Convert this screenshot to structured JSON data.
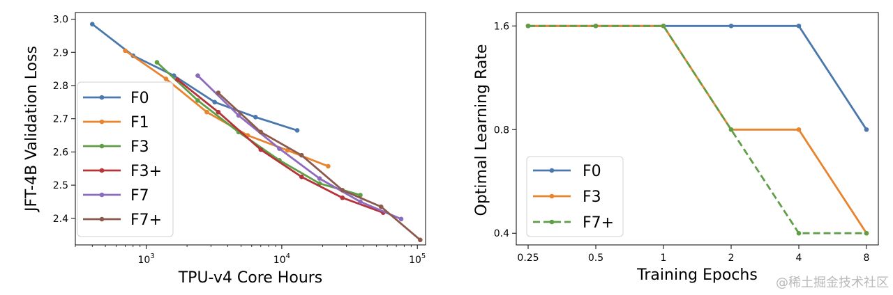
{
  "chart_data": [
    {
      "type": "line",
      "xlabel": "TPU-v4 Core Hours",
      "ylabel": "JFT-4B Validation Loss",
      "xscale": "log",
      "xlim": [
        300,
        115000
      ],
      "ylim": [
        2.32,
        3.02
      ],
      "xticks": [
        {
          "value": 1000,
          "base": "10",
          "exp": "3"
        },
        {
          "value": 10000,
          "base": "10",
          "exp": "4"
        },
        {
          "value": 100000,
          "base": "10",
          "exp": "5"
        }
      ],
      "yticks": [
        2.4,
        2.5,
        2.6,
        2.7,
        2.8,
        2.9,
        3.0
      ],
      "ytick_labels": [
        "2.4",
        "2.5",
        "2.6",
        "2.7",
        "2.8",
        "2.9",
        "3.0"
      ],
      "legend_position": "lower-left",
      "series": [
        {
          "name": "F0",
          "color": "#4a78ad",
          "x": [
            400,
            800,
            1600,
            3200,
            6400,
            13000
          ],
          "y": [
            2.985,
            2.89,
            2.83,
            2.75,
            2.705,
            2.665
          ]
        },
        {
          "name": "F1",
          "color": "#e8842e",
          "x": [
            700,
            1400,
            2800,
            5600,
            11000,
            22000
          ],
          "y": [
            2.905,
            2.82,
            2.72,
            2.65,
            2.605,
            2.557
          ]
        },
        {
          "name": "F3",
          "color": "#5f9e47",
          "x": [
            1200,
            2400,
            4800,
            9600,
            19000,
            38000
          ],
          "y": [
            2.87,
            2.755,
            2.66,
            2.575,
            2.505,
            2.47
          ]
        },
        {
          "name": "F3+",
          "color": "#b5343a",
          "x": [
            1700,
            3400,
            7000,
            14000,
            28000,
            56000
          ],
          "y": [
            2.818,
            2.72,
            2.607,
            2.525,
            2.462,
            2.417
          ]
        },
        {
          "name": "F7",
          "color": "#8c6bbd",
          "x": [
            2400,
            4800,
            9600,
            19000,
            38000,
            76000
          ],
          "y": [
            2.83,
            2.71,
            2.61,
            2.52,
            2.45,
            2.398
          ]
        },
        {
          "name": "F7+",
          "color": "#8b5a4d",
          "x": [
            3400,
            7000,
            14000,
            28000,
            54000,
            105000
          ],
          "y": [
            2.778,
            2.66,
            2.59,
            2.485,
            2.435,
            2.335
          ]
        }
      ]
    },
    {
      "type": "line",
      "xlabel": "Training Epochs",
      "ylabel": "Optimal Learning Rate",
      "categories": [
        "0.25",
        "0.5",
        "1",
        "2",
        "4",
        "8"
      ],
      "yscale": "log",
      "ylim": [
        0.37,
        1.75
      ],
      "yticks": [
        0.4,
        0.8,
        1.6
      ],
      "ytick_labels": [
        "0.4",
        "0.8",
        "1.6"
      ],
      "legend_position": "lower-left",
      "series": [
        {
          "name": "F0",
          "color": "#4a78ad",
          "dash": false,
          "values": [
            1.6,
            1.6,
            1.6,
            1.6,
            1.6,
            0.8
          ]
        },
        {
          "name": "F3",
          "color": "#e8842e",
          "dash": false,
          "values": [
            1.6,
            1.6,
            1.6,
            0.8,
            0.8,
            0.4
          ]
        },
        {
          "name": "F7+",
          "color": "#5f9e47",
          "dash": true,
          "values": [
            1.6,
            1.6,
            1.6,
            0.8,
            0.4,
            0.4
          ]
        }
      ]
    }
  ],
  "watermark": "@稀土掘金技术社区"
}
